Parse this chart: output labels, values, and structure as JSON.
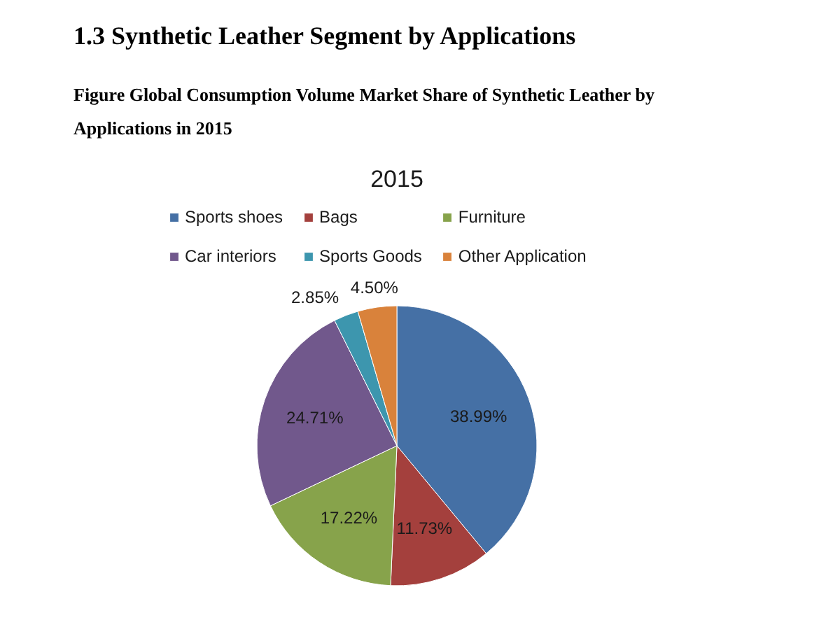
{
  "chart_data": {
    "type": "pie",
    "title": "Figure Global Consumption Volume Market Share of Synthetic Leather by Applications in 2015",
    "subtitle": "2015",
    "annotations": [
      "1.3 Synthetic Leather Segment by Applications"
    ],
    "categories": [
      "Sports shoes",
      "Bags",
      "Furniture",
      "Car interiors",
      "Sports Goods",
      "Other Application"
    ],
    "values": [
      38.99,
      11.73,
      17.22,
      24.71,
      2.85,
      4.5
    ],
    "colors": [
      "#4570a5",
      "#a4403d",
      "#87a34b",
      "#71588c",
      "#3d96ae",
      "#d9823b"
    ],
    "value_labels": [
      "38.99%",
      "11.73%",
      "17.22%",
      "24.71%",
      "2.85%",
      "4.50%"
    ],
    "legend": "top"
  }
}
